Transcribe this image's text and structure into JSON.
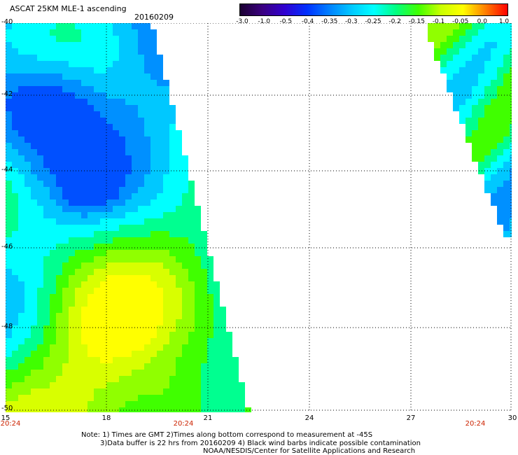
{
  "header": {
    "title": "ASCAT 25KM MLE-1 ascending",
    "date": "20160209"
  },
  "colorbar": {
    "labels": [
      "-3.0",
      "-1.0",
      "-0.5",
      "-0.4",
      "-0.35",
      "-0.3",
      "-0.25",
      "-0.2",
      "-0.15",
      "-0.1",
      "-0.05",
      "0.0",
      "1.0"
    ],
    "colors": [
      "#1a0030",
      "#3a0080",
      "#3000d0",
      "#0030ff",
      "#0080ff",
      "#00c8ff",
      "#00ffff",
      "#00ff80",
      "#40ff00",
      "#c8ff00",
      "#ffff00",
      "#ff8000",
      "#ff0000"
    ]
  },
  "map": {
    "lat_labels": [
      "-40",
      "-42",
      "-44",
      "-46",
      "-48",
      "-50"
    ],
    "lon_labels": [
      "15",
      "18",
      "21",
      "24",
      "27",
      "30"
    ],
    "time_labels": [
      "20:24",
      "20:24",
      "20:24"
    ]
  },
  "notes": {
    "line1": "Note: 1) Times are GMT 2)Times along bottom correspond to measurement at -45S",
    "line2": "3)Data buffer is 22 hrs from 20160209 4) Black wind barbs indicate possible contamination",
    "line3": "NOAA/NESDIS/Center for Satellite Applications and Research"
  }
}
